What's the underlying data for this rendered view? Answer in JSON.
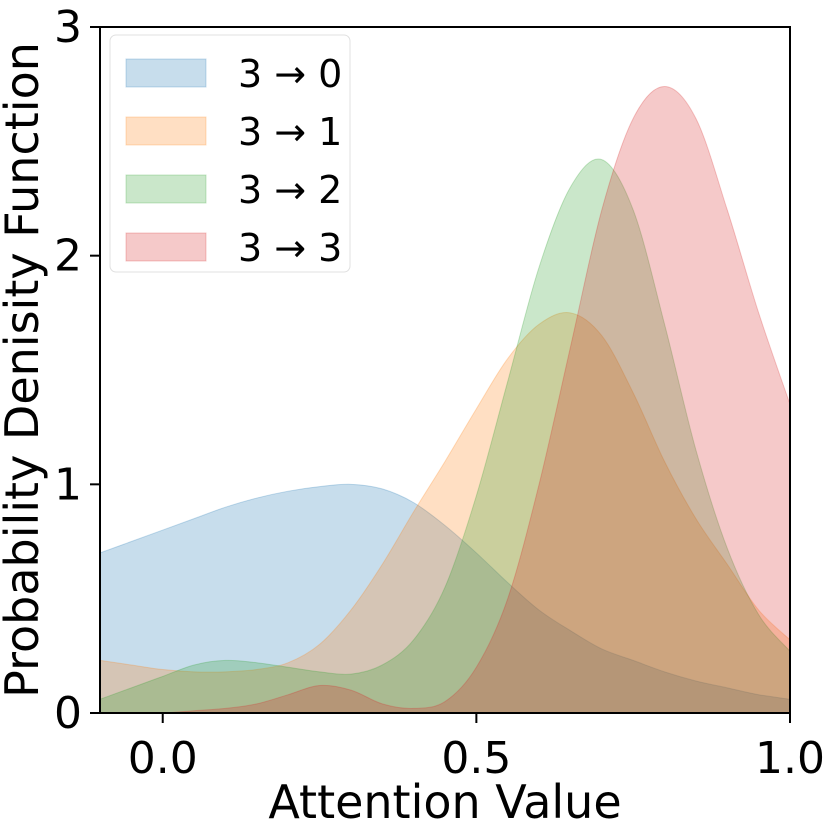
{
  "chart_data": {
    "type": "area",
    "xlabel": "Attention Value",
    "ylabel": "Probability Denisity Function",
    "xlim": [
      -0.1,
      1.0
    ],
    "ylim": [
      0,
      3
    ],
    "xticks": [
      0.0,
      0.5,
      1.0
    ],
    "xtick_labels": [
      "0.0",
      "0.5",
      "1.0"
    ],
    "yticks": [
      0,
      1,
      2,
      3
    ],
    "ytick_labels": [
      "0",
      "1",
      "2",
      "3"
    ],
    "grid": false,
    "legend_position": "top-left",
    "series": [
      {
        "name": "3 → 0",
        "color": "#1f77b4",
        "x": [
          -0.1,
          -0.05,
          0.0,
          0.05,
          0.1,
          0.15,
          0.2,
          0.25,
          0.3,
          0.35,
          0.4,
          0.45,
          0.5,
          0.55,
          0.6,
          0.65,
          0.7,
          0.75,
          0.8,
          0.85,
          0.9,
          0.95,
          1.0
        ],
        "values": [
          0.7,
          0.75,
          0.8,
          0.85,
          0.9,
          0.94,
          0.97,
          0.99,
          1.0,
          0.98,
          0.92,
          0.82,
          0.7,
          0.57,
          0.45,
          0.36,
          0.28,
          0.23,
          0.18,
          0.14,
          0.11,
          0.08,
          0.06
        ]
      },
      {
        "name": "3 → 1",
        "color": "#ff7f0e",
        "x": [
          -0.1,
          -0.05,
          0.0,
          0.05,
          0.1,
          0.15,
          0.2,
          0.25,
          0.3,
          0.35,
          0.4,
          0.45,
          0.5,
          0.55,
          0.6,
          0.65,
          0.7,
          0.75,
          0.8,
          0.85,
          0.9,
          0.95,
          1.0
        ],
        "values": [
          0.23,
          0.21,
          0.19,
          0.18,
          0.18,
          0.19,
          0.22,
          0.3,
          0.45,
          0.65,
          0.88,
          1.1,
          1.33,
          1.55,
          1.7,
          1.75,
          1.65,
          1.4,
          1.1,
          0.85,
          0.65,
          0.45,
          0.32
        ]
      },
      {
        "name": "3 → 2",
        "color": "#2ca02c",
        "x": [
          -0.1,
          -0.05,
          0.0,
          0.05,
          0.1,
          0.15,
          0.2,
          0.25,
          0.3,
          0.35,
          0.4,
          0.45,
          0.5,
          0.55,
          0.6,
          0.65,
          0.7,
          0.75,
          0.8,
          0.85,
          0.9,
          0.95,
          1.0
        ],
        "values": [
          0.06,
          0.11,
          0.16,
          0.21,
          0.23,
          0.22,
          0.2,
          0.18,
          0.17,
          0.21,
          0.32,
          0.55,
          0.95,
          1.45,
          1.95,
          2.3,
          2.42,
          2.2,
          1.7,
          1.15,
          0.72,
          0.43,
          0.27
        ]
      },
      {
        "name": "3 → 3",
        "color": "#d62728",
        "x": [
          -0.1,
          -0.05,
          0.0,
          0.05,
          0.1,
          0.15,
          0.2,
          0.25,
          0.3,
          0.35,
          0.4,
          0.45,
          0.5,
          0.55,
          0.6,
          0.65,
          0.7,
          0.75,
          0.8,
          0.85,
          0.9,
          0.95,
          1.0
        ],
        "values": [
          0.0,
          0.0,
          0.0,
          0.01,
          0.02,
          0.04,
          0.08,
          0.12,
          0.1,
          0.04,
          0.02,
          0.05,
          0.2,
          0.5,
          1.0,
          1.6,
          2.2,
          2.6,
          2.74,
          2.6,
          2.2,
          1.75,
          1.35
        ]
      }
    ]
  }
}
